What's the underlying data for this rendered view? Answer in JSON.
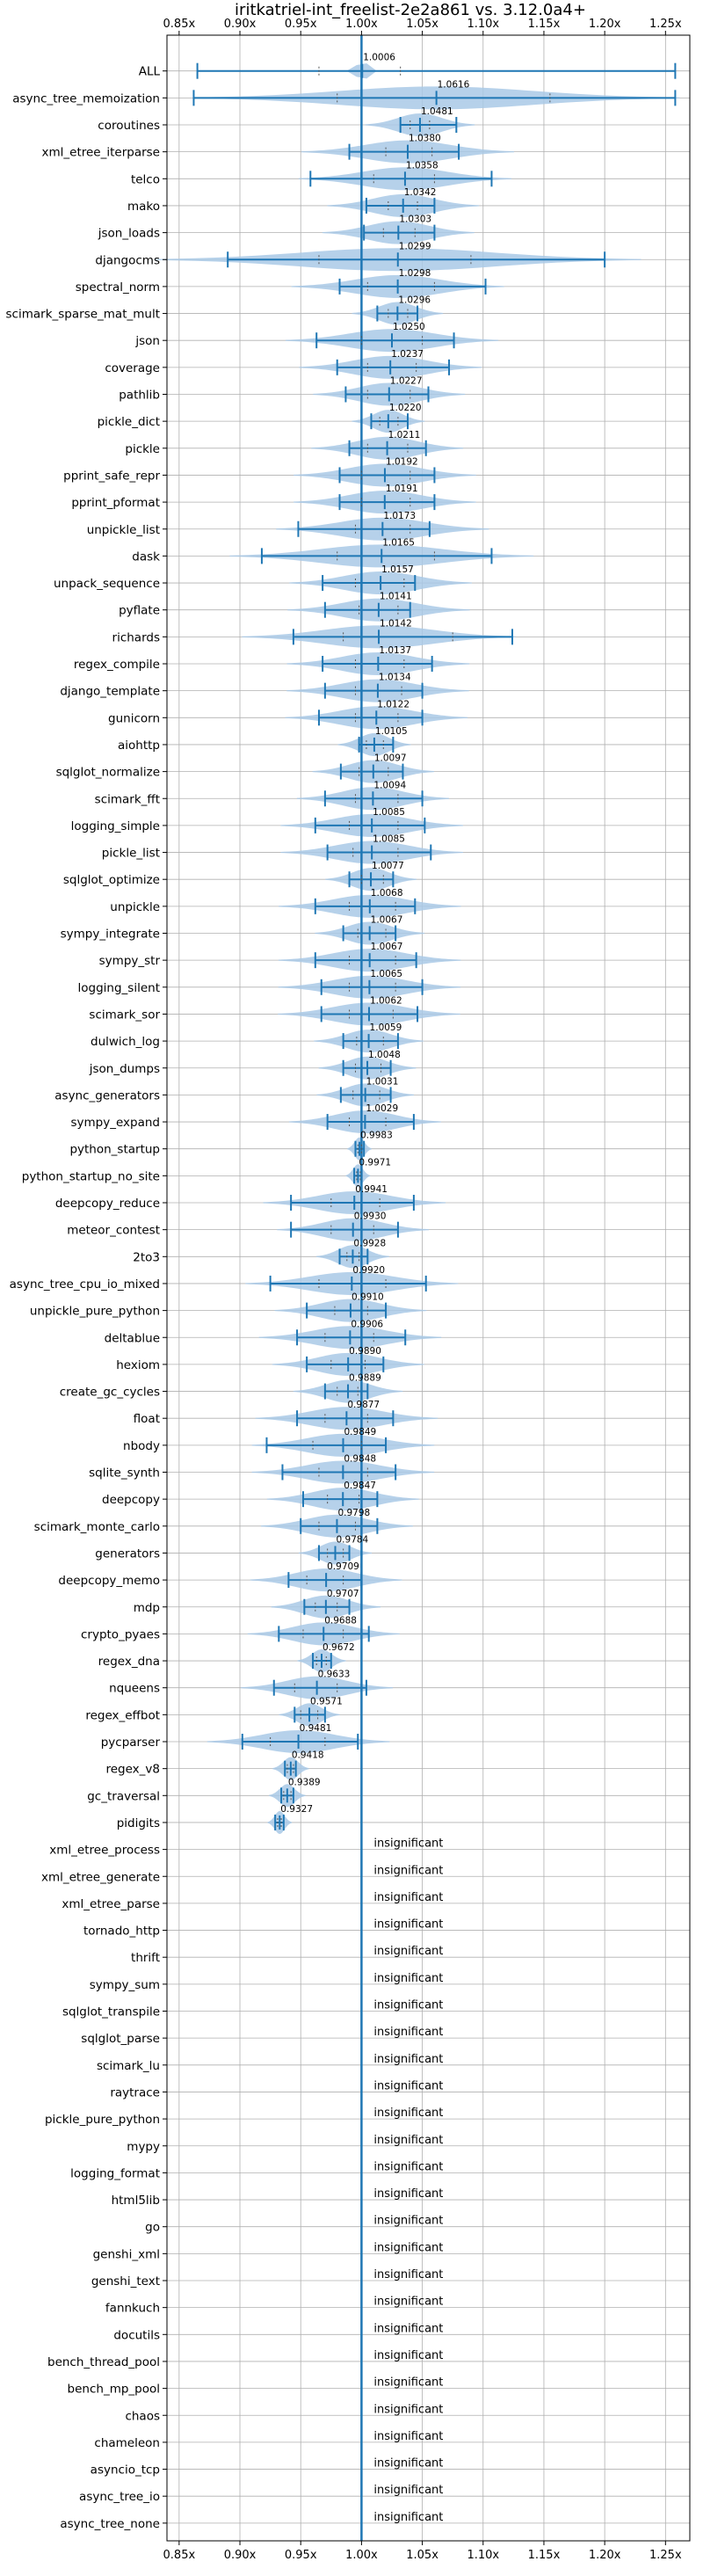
{
  "chart_data": {
    "type": "violin",
    "title": "iritkatriel-int_freelist-2e2a861 vs. 3.12.0a4+",
    "xlabel": "",
    "ylabel": "",
    "xlim": [
      0.84,
      1.27
    ],
    "x_ticks": [
      0.85,
      0.9,
      0.95,
      1.0,
      1.05,
      1.1,
      1.15,
      1.2,
      1.25
    ],
    "x_tick_labels": [
      "0.85x",
      "0.90x",
      "0.95x",
      "1.00x",
      "1.05x",
      "1.10x",
      "1.15x",
      "1.20x",
      "1.25x"
    ],
    "reference_line": 1.0,
    "grid": true,
    "insignificant_text": "insignificant",
    "colors": {
      "accent": "#1f77b4",
      "violin": "#a9c9e6",
      "grid": "#b0b0b0"
    },
    "benchmarks": [
      {
        "name": "ALL",
        "label": "1.0006",
        "center": 1.0006,
        "min": 0.865,
        "max": 1.258,
        "q1": 0.965,
        "q3": 1.032,
        "spread": 0.004
      },
      {
        "name": "async_tree_memoization",
        "label": "1.0616",
        "center": 1.0616,
        "min": 0.862,
        "max": 1.258,
        "q1": 0.98,
        "q3": 1.155,
        "spread": 0.08
      },
      {
        "name": "coroutines",
        "label": "1.0481",
        "center": 1.0481,
        "min": 1.032,
        "max": 1.078,
        "q1": 1.04,
        "q3": 1.056,
        "spread": 0.018
      },
      {
        "name": "xml_etree_iterparse",
        "label": "1.0380",
        "center": 1.038,
        "min": 0.99,
        "max": 1.08,
        "q1": 1.02,
        "q3": 1.058,
        "spread": 0.035
      },
      {
        "name": "telco",
        "label": "1.0358",
        "center": 1.0358,
        "min": 0.958,
        "max": 1.107,
        "q1": 1.01,
        "q3": 1.06,
        "spread": 0.035
      },
      {
        "name": "mako",
        "label": "1.0342",
        "center": 1.0342,
        "min": 1.004,
        "max": 1.06,
        "q1": 1.022,
        "q3": 1.046,
        "spread": 0.025
      },
      {
        "name": "json_loads",
        "label": "1.0303",
        "center": 1.0303,
        "min": 1.002,
        "max": 1.06,
        "q1": 1.018,
        "q3": 1.044,
        "spread": 0.025
      },
      {
        "name": "djangocms",
        "label": "1.0299",
        "center": 1.0299,
        "min": 0.89,
        "max": 1.2,
        "q1": 0.965,
        "q3": 1.09,
        "spread": 0.08
      },
      {
        "name": "spectral_norm",
        "label": "1.0298",
        "center": 1.0298,
        "min": 0.982,
        "max": 1.102,
        "q1": 1.005,
        "q3": 1.06,
        "spread": 0.035
      },
      {
        "name": "scimark_sparse_mat_mult",
        "label": "1.0296",
        "center": 1.0296,
        "min": 1.013,
        "max": 1.046,
        "q1": 1.022,
        "q3": 1.038,
        "spread": 0.015
      },
      {
        "name": "json",
        "label": "1.0250",
        "center": 1.025,
        "min": 0.963,
        "max": 1.076,
        "q1": 1.0,
        "q3": 1.05,
        "spread": 0.035
      },
      {
        "name": "coverage",
        "label": "1.0237",
        "center": 1.0237,
        "min": 0.98,
        "max": 1.072,
        "q1": 1.005,
        "q3": 1.045,
        "spread": 0.03
      },
      {
        "name": "pathlib",
        "label": "1.0227",
        "center": 1.0227,
        "min": 0.987,
        "max": 1.055,
        "q1": 1.005,
        "q3": 1.04,
        "spread": 0.025
      },
      {
        "name": "pickle_dict",
        "label": "1.0220",
        "center": 1.022,
        "min": 1.008,
        "max": 1.038,
        "q1": 1.015,
        "q3": 1.03,
        "spread": 0.012
      },
      {
        "name": "pickle",
        "label": "1.0211",
        "center": 1.0211,
        "min": 0.99,
        "max": 1.053,
        "q1": 1.005,
        "q3": 1.038,
        "spread": 0.025
      },
      {
        "name": "pprint_safe_repr",
        "label": "1.0192",
        "center": 1.0192,
        "min": 0.982,
        "max": 1.06,
        "q1": 1.0,
        "q3": 1.04,
        "spread": 0.03
      },
      {
        "name": "pprint_pformat",
        "label": "1.0191",
        "center": 1.0191,
        "min": 0.982,
        "max": 1.06,
        "q1": 1.0,
        "q3": 1.04,
        "spread": 0.03
      },
      {
        "name": "unpickle_list",
        "label": "1.0173",
        "center": 1.0173,
        "min": 0.948,
        "max": 1.056,
        "q1": 0.995,
        "q3": 1.04,
        "spread": 0.035
      },
      {
        "name": "dask",
        "label": "1.0165",
        "center": 1.0165,
        "min": 0.918,
        "max": 1.107,
        "q1": 0.98,
        "q3": 1.06,
        "spread": 0.05
      },
      {
        "name": "unpack_sequence",
        "label": "1.0157",
        "center": 1.0157,
        "min": 0.968,
        "max": 1.044,
        "q1": 0.995,
        "q3": 1.035,
        "spread": 0.03
      },
      {
        "name": "pyflate",
        "label": "1.0141",
        "center": 1.0141,
        "min": 0.97,
        "max": 1.04,
        "q1": 0.998,
        "q3": 1.03,
        "spread": 0.03
      },
      {
        "name": "richards",
        "label": "1.0142",
        "center": 1.0142,
        "min": 0.944,
        "max": 1.124,
        "q1": 0.985,
        "q3": 1.075,
        "spread": 0.045
      },
      {
        "name": "regex_compile",
        "label": "1.0137",
        "center": 1.0137,
        "min": 0.968,
        "max": 1.058,
        "q1": 0.995,
        "q3": 1.035,
        "spread": 0.03
      },
      {
        "name": "django_template",
        "label": "1.0134",
        "center": 1.0134,
        "min": 0.97,
        "max": 1.05,
        "q1": 0.995,
        "q3": 1.033,
        "spread": 0.03
      },
      {
        "name": "gunicorn",
        "label": "1.0122",
        "center": 1.0122,
        "min": 0.965,
        "max": 1.05,
        "q1": 0.995,
        "q3": 1.03,
        "spread": 0.03
      },
      {
        "name": "aiohttp",
        "label": "1.0105",
        "center": 1.0105,
        "min": 0.998,
        "max": 1.026,
        "q1": 1.004,
        "q3": 1.018,
        "spread": 0.012
      },
      {
        "name": "sqlglot_normalize",
        "label": "1.0097",
        "center": 1.0097,
        "min": 0.983,
        "max": 1.034,
        "q1": 0.998,
        "q3": 1.022,
        "spread": 0.02
      },
      {
        "name": "scimark_fft",
        "label": "1.0094",
        "center": 1.0094,
        "min": 0.97,
        "max": 1.05,
        "q1": 0.995,
        "q3": 1.03,
        "spread": 0.025
      },
      {
        "name": "logging_simple",
        "label": "1.0085",
        "center": 1.0085,
        "min": 0.962,
        "max": 1.052,
        "q1": 0.99,
        "q3": 1.03,
        "spread": 0.03
      },
      {
        "name": "pickle_list",
        "label": "1.0085",
        "center": 1.0085,
        "min": 0.972,
        "max": 1.057,
        "q1": 0.993,
        "q3": 1.03,
        "spread": 0.03
      },
      {
        "name": "sqlglot_optimize",
        "label": "1.0077",
        "center": 1.0077,
        "min": 0.99,
        "max": 1.026,
        "q1": 1.0,
        "q3": 1.018,
        "spread": 0.015
      },
      {
        "name": "unpickle",
        "label": "1.0068",
        "center": 1.0068,
        "min": 0.962,
        "max": 1.044,
        "q1": 0.99,
        "q3": 1.028,
        "spread": 0.03
      },
      {
        "name": "sympy_integrate",
        "label": "1.0067",
        "center": 1.0067,
        "min": 0.985,
        "max": 1.028,
        "q1": 0.997,
        "q3": 1.02,
        "spread": 0.018
      },
      {
        "name": "sympy_str",
        "label": "1.0067",
        "center": 1.0067,
        "min": 0.962,
        "max": 1.045,
        "q1": 0.99,
        "q3": 1.028,
        "spread": 0.03
      },
      {
        "name": "logging_silent",
        "label": "1.0065",
        "center": 1.0065,
        "min": 0.967,
        "max": 1.05,
        "q1": 0.99,
        "q3": 1.028,
        "spread": 0.03
      },
      {
        "name": "scimark_sor",
        "label": "1.0062",
        "center": 1.0062,
        "min": 0.967,
        "max": 1.046,
        "q1": 0.99,
        "q3": 1.026,
        "spread": 0.03
      },
      {
        "name": "dulwich_log",
        "label": "1.0059",
        "center": 1.0059,
        "min": 0.985,
        "max": 1.03,
        "q1": 0.996,
        "q3": 1.018,
        "spread": 0.018
      },
      {
        "name": "json_dumps",
        "label": "1.0048",
        "center": 1.0048,
        "min": 0.985,
        "max": 1.024,
        "q1": 0.995,
        "q3": 1.016,
        "spread": 0.016
      },
      {
        "name": "async_generators",
        "label": "1.0031",
        "center": 1.0031,
        "min": 0.983,
        "max": 1.024,
        "q1": 0.993,
        "q3": 1.015,
        "spread": 0.016
      },
      {
        "name": "sympy_expand",
        "label": "1.0029",
        "center": 1.0029,
        "min": 0.972,
        "max": 1.043,
        "q1": 0.99,
        "q3": 1.02,
        "spread": 0.025
      },
      {
        "name": "python_startup",
        "label": "0.9983",
        "center": 0.9983,
        "min": 0.995,
        "max": 1.002,
        "q1": 0.997,
        "q3": 1.0,
        "spread": 0.004
      },
      {
        "name": "python_startup_no_site",
        "label": "0.9971",
        "center": 0.9971,
        "min": 0.994,
        "max": 1.0,
        "q1": 0.996,
        "q3": 0.999,
        "spread": 0.004
      },
      {
        "name": "deepcopy_reduce",
        "label": "0.9941",
        "center": 0.9941,
        "min": 0.942,
        "max": 1.043,
        "q1": 0.975,
        "q3": 1.015,
        "spread": 0.03
      },
      {
        "name": "meteor_contest",
        "label": "0.9930",
        "center": 0.993,
        "min": 0.942,
        "max": 1.03,
        "q1": 0.975,
        "q3": 1.01,
        "spread": 0.025
      },
      {
        "name": "2to3",
        "label": "0.9928",
        "center": 0.9928,
        "min": 0.982,
        "max": 1.005,
        "q1": 0.988,
        "q3": 0.998,
        "spread": 0.012
      },
      {
        "name": "async_tree_cpu_io_mixed",
        "label": "0.9920",
        "center": 0.992,
        "min": 0.925,
        "max": 1.053,
        "q1": 0.965,
        "q3": 1.02,
        "spread": 0.035
      },
      {
        "name": "unpickle_pure_python",
        "label": "0.9910",
        "center": 0.991,
        "min": 0.955,
        "max": 1.02,
        "q1": 0.978,
        "q3": 1.005,
        "spread": 0.025
      },
      {
        "name": "deltablue",
        "label": "0.9906",
        "center": 0.9906,
        "min": 0.947,
        "max": 1.036,
        "q1": 0.97,
        "q3": 1.01,
        "spread": 0.03
      },
      {
        "name": "hexiom",
        "label": "0.9890",
        "center": 0.989,
        "min": 0.955,
        "max": 1.018,
        "q1": 0.975,
        "q3": 1.003,
        "spread": 0.025
      },
      {
        "name": "create_gc_cycles",
        "label": "0.9889",
        "center": 0.9889,
        "min": 0.97,
        "max": 1.005,
        "q1": 0.98,
        "q3": 0.997,
        "spread": 0.018
      },
      {
        "name": "float",
        "label": "0.9877",
        "center": 0.9877,
        "min": 0.947,
        "max": 1.026,
        "q1": 0.97,
        "q3": 1.005,
        "spread": 0.03
      },
      {
        "name": "nbody",
        "label": "0.9849",
        "center": 0.9849,
        "min": 0.922,
        "max": 1.02,
        "q1": 0.96,
        "q3": 1.0,
        "spread": 0.03
      },
      {
        "name": "sqlite_synth",
        "label": "0.9848",
        "center": 0.9848,
        "min": 0.935,
        "max": 1.028,
        "q1": 0.965,
        "q3": 1.005,
        "spread": 0.03
      },
      {
        "name": "deepcopy",
        "label": "0.9847",
        "center": 0.9847,
        "min": 0.952,
        "max": 1.013,
        "q1": 0.972,
        "q3": 0.998,
        "spread": 0.025
      },
      {
        "name": "scimark_monte_carlo",
        "label": "0.9798",
        "center": 0.9798,
        "min": 0.95,
        "max": 1.013,
        "q1": 0.965,
        "q3": 0.995,
        "spread": 0.025
      },
      {
        "name": "generators",
        "label": "0.9784",
        "center": 0.9784,
        "min": 0.965,
        "max": 0.99,
        "q1": 0.972,
        "q3": 0.985,
        "spread": 0.012
      },
      {
        "name": "deepcopy_memo",
        "label": "0.9709",
        "center": 0.9709,
        "min": 0.94,
        "max": 1.0,
        "q1": 0.955,
        "q3": 0.985,
        "spread": 0.025
      },
      {
        "name": "mdp",
        "label": "0.9707",
        "center": 0.9707,
        "min": 0.953,
        "max": 0.99,
        "q1": 0.962,
        "q3": 0.98,
        "spread": 0.018
      },
      {
        "name": "crypto_pyaes",
        "label": "0.9688",
        "center": 0.9688,
        "min": 0.932,
        "max": 1.006,
        "q1": 0.952,
        "q3": 0.985,
        "spread": 0.025
      },
      {
        "name": "regex_dna",
        "label": "0.9672",
        "center": 0.9672,
        "min": 0.96,
        "max": 0.975,
        "q1": 0.963,
        "q3": 0.971,
        "spread": 0.008
      },
      {
        "name": "nqueens",
        "label": "0.9633",
        "center": 0.9633,
        "min": 0.928,
        "max": 1.004,
        "q1": 0.945,
        "q3": 0.98,
        "spread": 0.025
      },
      {
        "name": "regex_effbot",
        "label": "0.9571",
        "center": 0.9571,
        "min": 0.945,
        "max": 0.97,
        "q1": 0.95,
        "q3": 0.964,
        "spread": 0.01
      },
      {
        "name": "pycparser",
        "label": "0.9481",
        "center": 0.9481,
        "min": 0.902,
        "max": 0.997,
        "q1": 0.925,
        "q3": 0.97,
        "spread": 0.03
      },
      {
        "name": "regex_v8",
        "label": "0.9418",
        "center": 0.9418,
        "min": 0.937,
        "max": 0.946,
        "q1": 0.939,
        "q3": 0.944,
        "spread": 0.006
      },
      {
        "name": "gc_traversal",
        "label": "0.9389",
        "center": 0.9389,
        "min": 0.934,
        "max": 0.944,
        "q1": 0.936,
        "q3": 0.942,
        "spread": 0.006
      },
      {
        "name": "pidigits",
        "label": "0.9327",
        "center": 0.9327,
        "min": 0.929,
        "max": 0.936,
        "q1": 0.931,
        "q3": 0.934,
        "spread": 0.004
      },
      {
        "name": "xml_etree_process",
        "insignificant": true
      },
      {
        "name": "xml_etree_generate",
        "insignificant": true
      },
      {
        "name": "xml_etree_parse",
        "insignificant": true
      },
      {
        "name": "tornado_http",
        "insignificant": true
      },
      {
        "name": "thrift",
        "insignificant": true
      },
      {
        "name": "sympy_sum",
        "insignificant": true
      },
      {
        "name": "sqlglot_transpile",
        "insignificant": true
      },
      {
        "name": "sqlglot_parse",
        "insignificant": true
      },
      {
        "name": "scimark_lu",
        "insignificant": true
      },
      {
        "name": "raytrace",
        "insignificant": true
      },
      {
        "name": "pickle_pure_python",
        "insignificant": true
      },
      {
        "name": "mypy",
        "insignificant": true
      },
      {
        "name": "logging_format",
        "insignificant": true
      },
      {
        "name": "html5lib",
        "insignificant": true
      },
      {
        "name": "go",
        "insignificant": true
      },
      {
        "name": "genshi_xml",
        "insignificant": true
      },
      {
        "name": "genshi_text",
        "insignificant": true
      },
      {
        "name": "fannkuch",
        "insignificant": true
      },
      {
        "name": "docutils",
        "insignificant": true
      },
      {
        "name": "bench_thread_pool",
        "insignificant": true
      },
      {
        "name": "bench_mp_pool",
        "insignificant": true
      },
      {
        "name": "chaos",
        "insignificant": true
      },
      {
        "name": "chameleon",
        "insignificant": true
      },
      {
        "name": "asyncio_tcp",
        "insignificant": true
      },
      {
        "name": "async_tree_io",
        "insignificant": true
      },
      {
        "name": "async_tree_none",
        "insignificant": true
      }
    ]
  }
}
